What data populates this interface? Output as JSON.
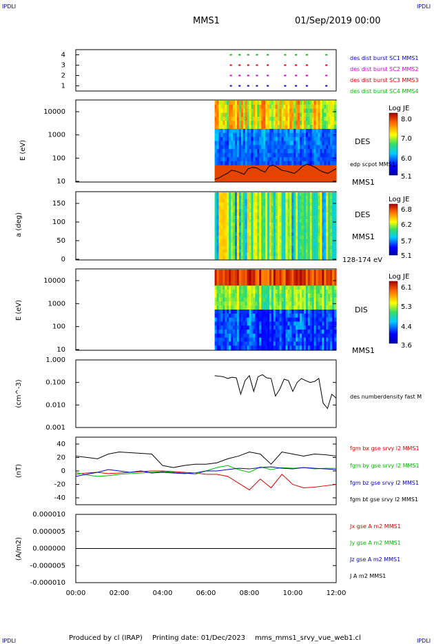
{
  "corner_label": "IPDLI",
  "header": {
    "mission": "MMS1",
    "datetime": "01/Sep/2019 00:00"
  },
  "footer": {
    "producer": "Produced by cl (IRAP)",
    "printing": "Printing date: 01/Dec/2023",
    "file": "mms_mms1_srvy_vue_web1.cl"
  },
  "time_axis": {
    "ticks": [
      "00:00",
      "02:00",
      "04:00",
      "06:00",
      "08:00",
      "10:00",
      "12:00"
    ],
    "range_hours": [
      0,
      12
    ]
  },
  "colors": {
    "mms1": "#0000cc",
    "mms2": "#cc00cc",
    "mms3": "#dd0000",
    "mms4": "#00bb00",
    "bt": "#000000"
  },
  "chart_data": [
    {
      "type": "scatter",
      "panel": "burst availability",
      "ylim": [
        0.5,
        4.5
      ],
      "yticks": [
        "1",
        "2",
        "3",
        "4"
      ],
      "series": [
        {
          "name": "des dist burst SC1 MMS1",
          "y": 1,
          "color": "#0000cc",
          "x": [
            7.1,
            7.5,
            7.9,
            8.3,
            8.8,
            9.6,
            10.1,
            10.6,
            11.5
          ]
        },
        {
          "name": "des dist burst SC2 MMS2",
          "y": 2,
          "color": "#cc00cc",
          "x": [
            7.1,
            7.5,
            7.9,
            8.3,
            8.8,
            9.6,
            10.1,
            10.6,
            11.5
          ]
        },
        {
          "name": "des dist burst SC3 MMS3",
          "y": 3,
          "color": "#dd0000",
          "x": [
            7.1,
            7.5,
            7.9,
            8.3,
            8.8,
            9.6,
            10.1,
            10.6,
            11.5
          ]
        },
        {
          "name": "des dist burst SC4 MMS4",
          "y": 4,
          "color": "#00bb00",
          "x": [
            7.1,
            7.5,
            7.9,
            8.3,
            8.8,
            9.6,
            10.1,
            10.6,
            11.5
          ]
        }
      ]
    },
    {
      "type": "heatmap",
      "panel": "electron energy spectrogram",
      "ylabel": "E (eV)",
      "yticks": [
        "10",
        "100",
        "1000",
        "10000"
      ],
      "colorbar_title": "Log JE",
      "colorbar_ticks": [
        "8.0",
        "7.0",
        "6.0",
        "5.1"
      ],
      "label": "DES",
      "spacecraft": "MMS1",
      "overlay": "edp scpot MMS1",
      "data_start_hour": 6.4,
      "overlay_values_eV": [
        12,
        14,
        18,
        22,
        30,
        28,
        24,
        20,
        35,
        40,
        38,
        30,
        25,
        45,
        50,
        40,
        30,
        28,
        25,
        22,
        30,
        45,
        55,
        48,
        40,
        30,
        25,
        22,
        28,
        35
      ]
    },
    {
      "type": "heatmap",
      "panel": "electron pitch angle",
      "ylabel": "a (deg)",
      "yticks": [
        "0",
        "50",
        "100",
        "150"
      ],
      "colorbar_title": "Log JE",
      "colorbar_ticks": [
        "6.8",
        "6.2",
        "5.7",
        "5.1"
      ],
      "label": "DES",
      "spacecraft": "MMS1",
      "energy_range": "128-174 eV",
      "data_start_hour": 6.4
    },
    {
      "type": "heatmap",
      "panel": "ion energy spectrogram",
      "ylabel": "E (eV)",
      "yticks": [
        "10",
        "100",
        "1000",
        "10000"
      ],
      "colorbar_title": "Log JE",
      "colorbar_ticks": [
        "6.1",
        "5.3",
        "4.4",
        "3.6"
      ],
      "label": "DIS",
      "spacecraft": "MMS1",
      "data_start_hour": 6.4
    },
    {
      "type": "line",
      "panel": "electron number density",
      "ylabel": "(cm^-3)",
      "yscale": "log",
      "yticks": [
        "0.001",
        "0.010",
        "0.100",
        "1.000"
      ],
      "series": [
        {
          "name": "des numberdensity fast M",
          "color": "#000000",
          "x": [
            6.4,
            6.6,
            6.8,
            7.0,
            7.2,
            7.4,
            7.6,
            7.8,
            8.0,
            8.2,
            8.4,
            8.6,
            8.8,
            9.0,
            9.2,
            9.4,
            9.6,
            9.8,
            10.0,
            10.2,
            10.4,
            10.6,
            10.8,
            11.0,
            11.2,
            11.4,
            11.6,
            11.8,
            12.0
          ],
          "y": [
            0.2,
            0.19,
            0.18,
            0.15,
            0.17,
            0.16,
            0.03,
            0.12,
            0.2,
            0.04,
            0.18,
            0.22,
            0.16,
            0.15,
            0.025,
            0.05,
            0.14,
            0.12,
            0.04,
            0.1,
            0.15,
            0.12,
            0.1,
            0.11,
            0.15,
            0.012,
            0.007,
            0.03,
            0.02
          ]
        }
      ]
    },
    {
      "type": "line",
      "panel": "magnetic field",
      "ylabel": "(nT)",
      "ylim": [
        -50,
        50
      ],
      "yticks": [
        "-40",
        "-20",
        "0",
        "20",
        "40"
      ],
      "series": [
        {
          "name": "fgm bx gse srvy l2 MMS1",
          "color": "#dd0000",
          "x": [
            0,
            0.5,
            1,
            1.5,
            2,
            2.5,
            3,
            3.5,
            4,
            4.5,
            5,
            5.5,
            6,
            6.5,
            7,
            7.5,
            8,
            8.5,
            9,
            9.5,
            10,
            10.5,
            11,
            11.5,
            12
          ],
          "y": [
            -5,
            -3,
            -2,
            -4,
            -3,
            -2,
            -1,
            0,
            0,
            -1,
            -2,
            -3,
            -5,
            -5,
            -8,
            -18,
            -28,
            -12,
            -25,
            -5,
            -20,
            -25,
            -24,
            -22,
            -20
          ]
        },
        {
          "name": "fgm by gse srvy l2 MMS1",
          "color": "#00bb00",
          "x": [
            0,
            0.5,
            1,
            1.5,
            2,
            2.5,
            3,
            3.5,
            4,
            4.5,
            5,
            5.5,
            6,
            6.5,
            7,
            7.5,
            8,
            8.5,
            9,
            9.5,
            10,
            10.5,
            11,
            11.5,
            12
          ],
          "y": [
            -2,
            -6,
            -8,
            -7,
            -5,
            -4,
            -3,
            -2,
            -1,
            -2,
            -3,
            -5,
            0,
            5,
            8,
            2,
            -2,
            6,
            2,
            5,
            4,
            5,
            3,
            4,
            4
          ]
        },
        {
          "name": "fgm bz gse srvy l2 MMS1",
          "color": "#0000cc",
          "x": [
            0,
            0.5,
            1,
            1.5,
            2,
            2.5,
            3,
            3.5,
            4,
            4.5,
            5,
            5.5,
            6,
            6.5,
            7,
            7.5,
            8,
            8.5,
            9,
            9.5,
            10,
            10.5,
            11,
            11.5,
            12
          ],
          "y": [
            -8,
            -5,
            -2,
            2,
            0,
            -2,
            0,
            -3,
            -2,
            -3,
            -4,
            -3,
            0,
            0,
            2,
            4,
            3,
            5,
            6,
            4,
            3,
            5,
            4,
            3,
            2
          ]
        },
        {
          "name": "fgm bt gse srvy l2 MMS1",
          "color": "#000000",
          "x": [
            0,
            0.5,
            1,
            1.5,
            2,
            2.5,
            3,
            3.5,
            4,
            4.5,
            5,
            5.5,
            6,
            6.5,
            7,
            7.5,
            8,
            8.5,
            9,
            9.5,
            10,
            10.5,
            11,
            11.5,
            12
          ],
          "y": [
            22,
            20,
            18,
            25,
            28,
            27,
            26,
            25,
            8,
            5,
            8,
            10,
            10,
            12,
            18,
            22,
            28,
            25,
            10,
            28,
            25,
            22,
            25,
            24,
            22
          ]
        }
      ]
    },
    {
      "type": "line",
      "panel": "current density",
      "ylabel": "(A/m2)",
      "ylim": [
        -0.0001,
        0.0001
      ],
      "yticks": [
        "-0.000010",
        "-0.000005",
        "0.000000",
        "0.000005",
        "0.000010"
      ],
      "series": [
        {
          "name": "Jx gse A m2 MMS1",
          "color": "#dd0000",
          "x": [
            0,
            12
          ],
          "y": [
            0,
            0
          ]
        },
        {
          "name": "Jy gse A m2 MMS1",
          "color": "#00bb00",
          "x": [
            0,
            12
          ],
          "y": [
            0,
            0
          ]
        },
        {
          "name": "Jz gse A m2 MMS1",
          "color": "#0000cc",
          "x": [
            0,
            12
          ],
          "y": [
            0,
            0
          ]
        },
        {
          "name": "J A m2 MMS1",
          "color": "#000000",
          "x": [
            0,
            12
          ],
          "y": [
            0,
            0
          ]
        }
      ]
    }
  ]
}
